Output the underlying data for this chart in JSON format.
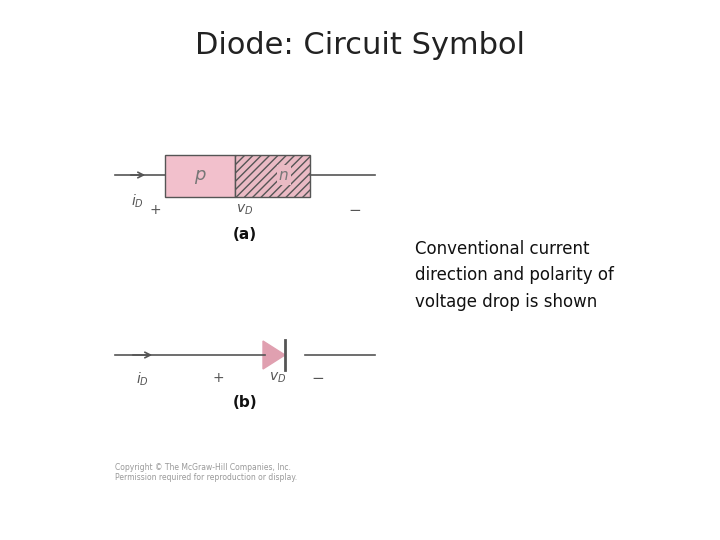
{
  "title": "Diode: Circuit Symbol",
  "title_fontsize": 22,
  "annotation_text": "Conventional current\ndirection and polarity of\nvoltage drop is shown",
  "annotation_fontsize": 12,
  "bg_color": "#ffffff",
  "p_fill": "#f2c0cc",
  "n_fill": "#eabac4",
  "n_hatch": "////",
  "line_color": "#555555",
  "diode_color": "#e0a0b0",
  "copyright_text": "Copyright © The McGraw-Hill Companies, Inc.\nPermission required for reproduction or display."
}
